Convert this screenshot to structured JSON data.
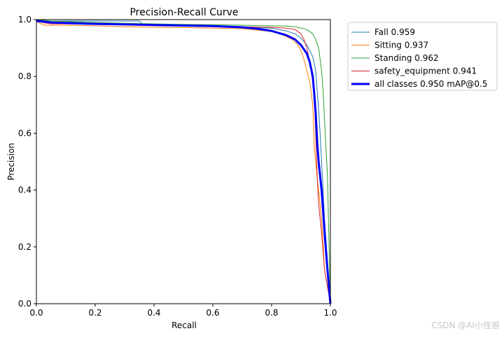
{
  "chart_data": {
    "type": "line",
    "title": "Precision-Recall Curve",
    "xlabel": "Recall",
    "ylabel": "Precision",
    "xlim": [
      0,
      1
    ],
    "ylim": [
      0,
      1
    ],
    "xticks": [
      "0.0",
      "0.2",
      "0.4",
      "0.6",
      "0.8",
      "1.0"
    ],
    "yticks": [
      "0.0",
      "0.2",
      "0.4",
      "0.6",
      "0.8",
      "1.0"
    ],
    "grid": false,
    "legend_position": "outside-top-right",
    "series": [
      {
        "name": "Fall 0.959",
        "color": "#1f77b4",
        "linewidth": 1,
        "x": [
          0,
          0.01,
          0.05,
          0.1,
          0.2,
          0.3,
          0.35,
          0.36,
          0.45,
          0.55,
          0.6,
          0.7,
          0.8,
          0.85,
          0.88,
          0.9,
          0.92,
          0.94,
          0.95,
          0.955,
          0.96,
          0.965,
          0.97,
          0.975,
          0.98,
          0.99,
          1.0
        ],
        "y": [
          1.0,
          0.995,
          0.995,
          0.995,
          0.995,
          0.995,
          0.995,
          0.985,
          0.98,
          0.978,
          0.975,
          0.973,
          0.97,
          0.96,
          0.95,
          0.935,
          0.91,
          0.87,
          0.82,
          0.75,
          0.68,
          0.6,
          0.5,
          0.4,
          0.3,
          0.15,
          0.0
        ]
      },
      {
        "name": "Sitting 0.937",
        "color": "#ff7f0e",
        "linewidth": 1,
        "x": [
          0,
          0.005,
          0.03,
          0.1,
          0.2,
          0.3,
          0.4,
          0.5,
          0.6,
          0.7,
          0.78,
          0.82,
          0.85,
          0.87,
          0.89,
          0.9,
          0.91,
          0.92,
          0.93,
          0.935,
          0.94,
          0.945,
          0.95,
          0.955,
          0.96,
          0.97,
          0.98,
          1.0
        ],
        "y": [
          1.0,
          0.99,
          0.98,
          0.98,
          0.978,
          0.975,
          0.973,
          0.972,
          0.97,
          0.968,
          0.96,
          0.955,
          0.94,
          0.93,
          0.91,
          0.89,
          0.86,
          0.82,
          0.78,
          0.74,
          0.7,
          0.55,
          0.5,
          0.44,
          0.4,
          0.3,
          0.12,
          0.0
        ]
      },
      {
        "name": "Standing 0.962",
        "color": "#2ca02c",
        "linewidth": 1,
        "x": [
          0,
          0.05,
          0.1,
          0.2,
          0.3,
          0.4,
          0.5,
          0.6,
          0.7,
          0.8,
          0.85,
          0.88,
          0.9,
          0.92,
          0.94,
          0.95,
          0.96,
          0.965,
          0.97,
          0.975,
          0.98,
          0.985,
          0.99,
          1.0
        ],
        "y": [
          1.0,
          0.995,
          0.993,
          0.99,
          0.987,
          0.985,
          0.983,
          0.982,
          0.98,
          0.978,
          0.977,
          0.975,
          0.97,
          0.965,
          0.95,
          0.93,
          0.9,
          0.86,
          0.82,
          0.75,
          0.65,
          0.55,
          0.45,
          0.0
        ]
      },
      {
        "name": "safety_equipment 0.941",
        "color": "#d62728",
        "linewidth": 1,
        "x": [
          0,
          0.02,
          0.05,
          0.1,
          0.2,
          0.3,
          0.4,
          0.5,
          0.6,
          0.7,
          0.8,
          0.85,
          0.88,
          0.9,
          0.91,
          0.92,
          0.93,
          0.94,
          0.945,
          0.95,
          0.955,
          0.96,
          0.97,
          0.98,
          1.0
        ],
        "y": [
          1.0,
          0.99,
          0.985,
          0.985,
          0.983,
          0.982,
          0.98,
          0.979,
          0.978,
          0.975,
          0.973,
          0.97,
          0.965,
          0.95,
          0.93,
          0.9,
          0.85,
          0.78,
          0.72,
          0.6,
          0.45,
          0.35,
          0.25,
          0.12,
          0.0
        ]
      },
      {
        "name": "all classes 0.950 mAP@0.5",
        "color": "#0000ff",
        "linewidth": 3,
        "x": [
          0,
          0.02,
          0.05,
          0.1,
          0.2,
          0.3,
          0.4,
          0.5,
          0.6,
          0.7,
          0.75,
          0.8,
          0.85,
          0.88,
          0.9,
          0.92,
          0.93,
          0.94,
          0.945,
          0.95,
          0.955,
          0.96,
          0.965,
          0.97,
          0.975,
          0.98,
          0.99,
          1.0
        ],
        "y": [
          0.995,
          0.993,
          0.99,
          0.988,
          0.985,
          0.983,
          0.981,
          0.979,
          0.977,
          0.973,
          0.968,
          0.96,
          0.945,
          0.93,
          0.91,
          0.88,
          0.85,
          0.8,
          0.74,
          0.67,
          0.57,
          0.5,
          0.45,
          0.4,
          0.33,
          0.25,
          0.12,
          0.0
        ]
      }
    ]
  },
  "watermark": "CSDN @AI小怪兽"
}
